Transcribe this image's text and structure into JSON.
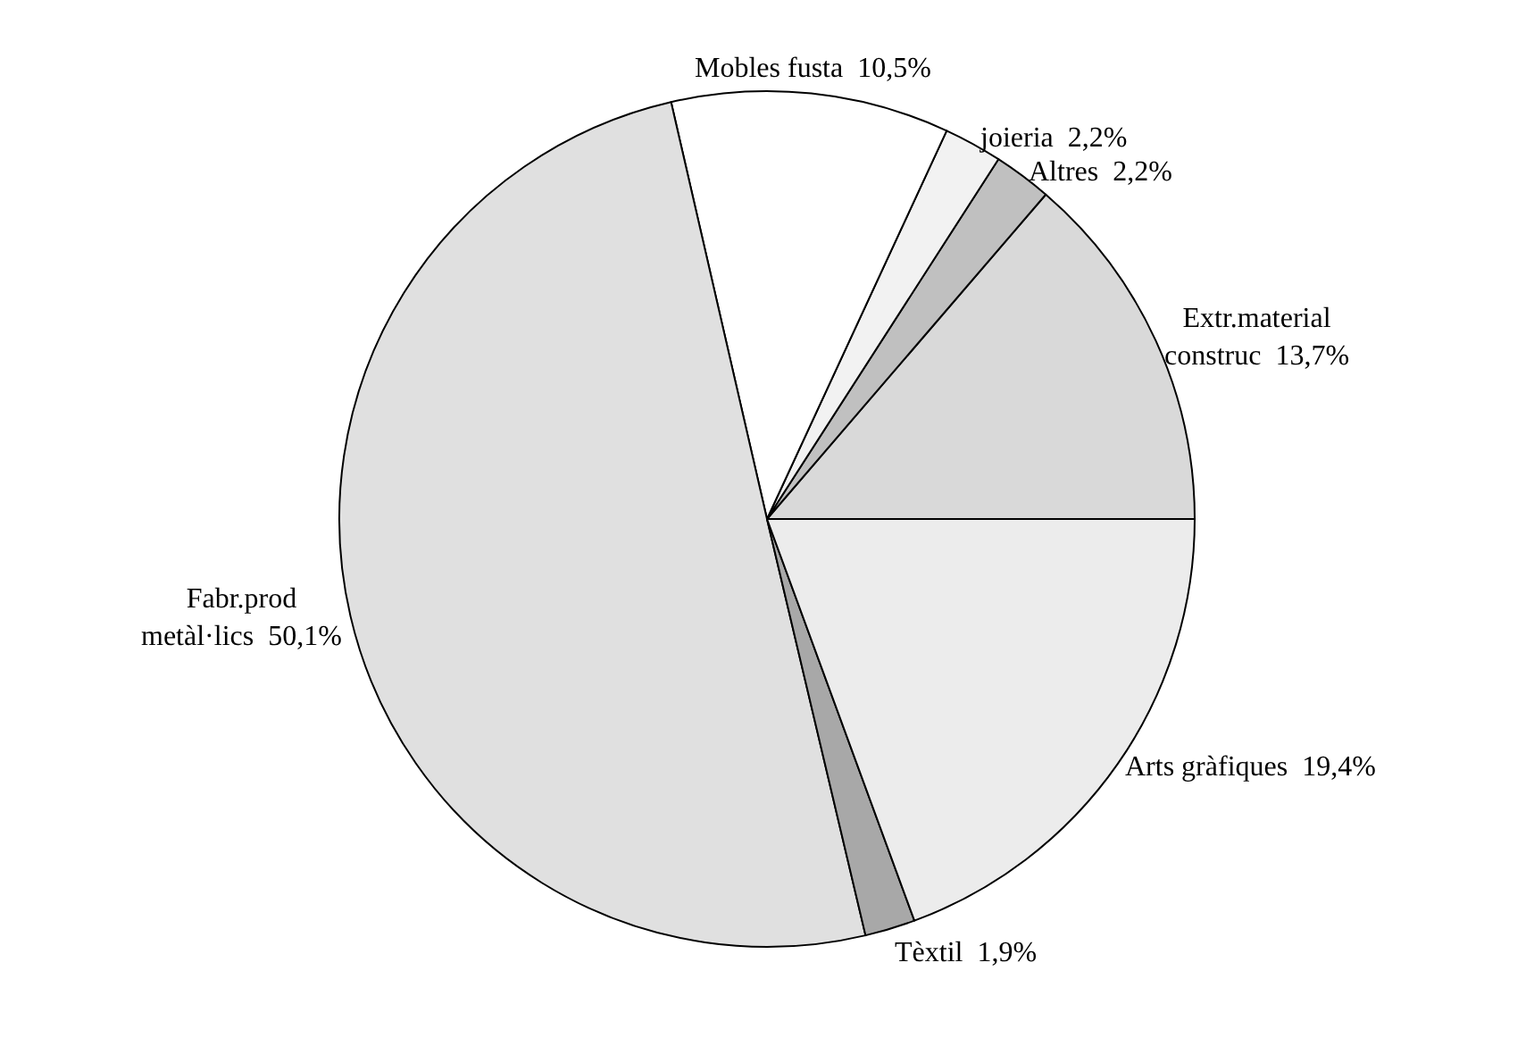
{
  "chart_data": {
    "type": "pie",
    "categories": [
      "Extr.material\nconstruc",
      "Altres",
      "joieria",
      "Mobles fusta",
      "Fabr.prod\nmetàl·lics",
      "Tèxtil",
      "Arts gràfiques"
    ],
    "values": [
      13.7,
      2.2,
      2.2,
      10.5,
      50.1,
      1.9,
      19.4
    ],
    "value_labels": [
      "13,7%",
      "2,2%",
      "2,2%",
      "10,5%",
      "50,1%",
      "1,9%",
      "19,4%"
    ],
    "colors": [
      "#d9d9d9",
      "#c0c0c0",
      "#f2f2f2",
      "#ffffff",
      "#e0e0e0",
      "#a8a8a8",
      "#ececec"
    ],
    "legend": false
  }
}
